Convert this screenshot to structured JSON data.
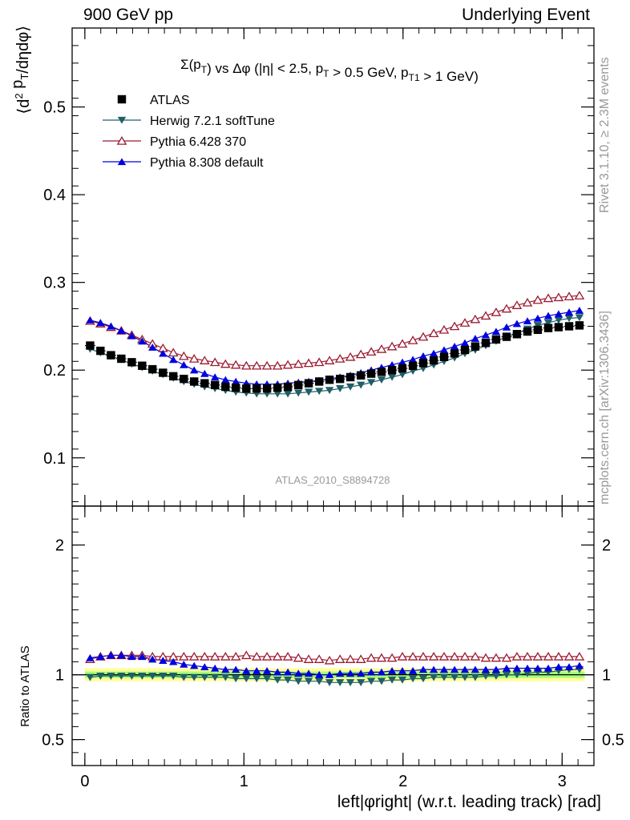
{
  "header": {
    "left": "900 GeV pp",
    "right": "Underlying Event"
  },
  "side": {
    "rivet": "Rivet 3.1.10, ≥ 2.3M events",
    "mcplots": "mcplots.cern.ch [arXiv:1306.3436]"
  },
  "watermark": "ATLAS_2010_S8894728",
  "colors": {
    "atlas": "#000000",
    "herwig": "#1f5f66",
    "pythia6": "#9b1b30",
    "pythia8": "#0000dd",
    "band_inner": "#a8ff7a",
    "band_outer": "#ffff99"
  },
  "chart_data": [
    {
      "type": "scatter",
      "title": "Σ(p_T) vs Δφ (|η| < 2.5, p_T > 0.5 GeV, p_T1 > 1 GeV)",
      "ylabel": "⟨d² p_T/dηdφ⟩",
      "xlim": [
        -0.08,
        3.2
      ],
      "ylim": [
        0.045,
        0.59
      ],
      "yticks": [
        0.1,
        0.2,
        0.3,
        0.4,
        0.5
      ],
      "legend_position": "top-left",
      "x": [
        0.033,
        0.098,
        0.164,
        0.229,
        0.295,
        0.36,
        0.425,
        0.491,
        0.556,
        0.622,
        0.687,
        0.753,
        0.818,
        0.884,
        0.949,
        1.015,
        1.08,
        1.145,
        1.211,
        1.276,
        1.342,
        1.407,
        1.473,
        1.538,
        1.604,
        1.669,
        1.735,
        1.8,
        1.865,
        1.931,
        1.996,
        2.062,
        2.127,
        2.193,
        2.258,
        2.324,
        2.389,
        2.454,
        2.52,
        2.585,
        2.651,
        2.716,
        2.782,
        2.847,
        2.913,
        2.978,
        3.044,
        3.109
      ],
      "series": [
        {
          "name": "ATLAS",
          "marker": "square",
          "color": "#000000",
          "values": [
            0.228,
            0.222,
            0.217,
            0.213,
            0.209,
            0.205,
            0.201,
            0.197,
            0.193,
            0.19,
            0.187,
            0.185,
            0.183,
            0.181,
            0.18,
            0.179,
            0.179,
            0.179,
            0.18,
            0.181,
            0.183,
            0.185,
            0.187,
            0.189,
            0.19,
            0.192,
            0.194,
            0.196,
            0.198,
            0.2,
            0.202,
            0.205,
            0.208,
            0.211,
            0.215,
            0.219,
            0.223,
            0.227,
            0.231,
            0.235,
            0.238,
            0.241,
            0.244,
            0.246,
            0.248,
            0.249,
            0.25,
            0.251
          ]
        },
        {
          "name": "Herwig 7.2.1 softTune",
          "marker": "triangle-down",
          "color": "#1f5f66",
          "values": [
            0.224,
            0.22,
            0.216,
            0.212,
            0.207,
            0.203,
            0.199,
            0.195,
            0.191,
            0.187,
            0.184,
            0.181,
            0.179,
            0.177,
            0.175,
            0.174,
            0.173,
            0.173,
            0.173,
            0.173,
            0.174,
            0.175,
            0.176,
            0.177,
            0.179,
            0.181,
            0.183,
            0.186,
            0.189,
            0.192,
            0.195,
            0.199,
            0.202,
            0.206,
            0.21,
            0.214,
            0.219,
            0.223,
            0.228,
            0.233,
            0.238,
            0.242,
            0.247,
            0.251,
            0.254,
            0.257,
            0.259,
            0.26
          ]
        },
        {
          "name": "Pythia 6.428 370",
          "marker": "triangle-up-open",
          "color": "#9b1b30",
          "values": [
            0.256,
            0.253,
            0.249,
            0.245,
            0.24,
            0.235,
            0.23,
            0.225,
            0.22,
            0.216,
            0.213,
            0.211,
            0.209,
            0.207,
            0.206,
            0.205,
            0.205,
            0.205,
            0.205,
            0.206,
            0.207,
            0.208,
            0.209,
            0.211,
            0.213,
            0.215,
            0.218,
            0.221,
            0.224,
            0.227,
            0.23,
            0.234,
            0.238,
            0.242,
            0.246,
            0.25,
            0.254,
            0.258,
            0.262,
            0.266,
            0.27,
            0.274,
            0.277,
            0.28,
            0.282,
            0.283,
            0.284,
            0.285
          ]
        },
        {
          "name": "Pythia 8.308 default",
          "marker": "triangle-up",
          "color": "#0000dd",
          "values": [
            0.257,
            0.254,
            0.25,
            0.245,
            0.239,
            0.233,
            0.226,
            0.219,
            0.212,
            0.206,
            0.2,
            0.196,
            0.192,
            0.189,
            0.187,
            0.185,
            0.184,
            0.184,
            0.184,
            0.185,
            0.186,
            0.187,
            0.188,
            0.19,
            0.192,
            0.194,
            0.197,
            0.2,
            0.203,
            0.206,
            0.209,
            0.212,
            0.216,
            0.219,
            0.223,
            0.227,
            0.231,
            0.236,
            0.24,
            0.244,
            0.249,
            0.253,
            0.256,
            0.259,
            0.262,
            0.264,
            0.266,
            0.268
          ]
        }
      ]
    },
    {
      "type": "scatter",
      "xlabel": "left|φright| (w.r.t. leading track) [rad]",
      "ylabel": "Ratio to ATLAS",
      "xlim": [
        -0.08,
        3.2
      ],
      "ylim": [
        0.3,
        2.3
      ],
      "xticks": [
        0,
        1,
        2,
        3
      ],
      "yticks": [
        0.5,
        1,
        2
      ],
      "band_inner": [
        0.975,
        1.025
      ],
      "band_outer": [
        0.95,
        1.05
      ],
      "series": [
        {
          "name": "Herwig 7.2.1 softTune",
          "values": [
            0.98,
            0.99,
            0.99,
            0.99,
            0.99,
            0.99,
            0.99,
            0.99,
            0.99,
            0.98,
            0.98,
            0.98,
            0.98,
            0.98,
            0.97,
            0.97,
            0.97,
            0.97,
            0.96,
            0.96,
            0.95,
            0.95,
            0.95,
            0.94,
            0.94,
            0.94,
            0.94,
            0.95,
            0.95,
            0.96,
            0.96,
            0.97,
            0.97,
            0.98,
            0.98,
            0.98,
            0.98,
            0.98,
            0.99,
            0.99,
            1.0,
            1.0,
            1.01,
            1.02,
            1.02,
            1.03,
            1.04,
            1.04
          ]
        },
        {
          "name": "Pythia 6.428 370",
          "values": [
            1.12,
            1.14,
            1.15,
            1.15,
            1.15,
            1.15,
            1.14,
            1.14,
            1.14,
            1.14,
            1.14,
            1.14,
            1.14,
            1.14,
            1.14,
            1.15,
            1.14,
            1.14,
            1.14,
            1.14,
            1.13,
            1.12,
            1.12,
            1.11,
            1.12,
            1.12,
            1.12,
            1.13,
            1.13,
            1.13,
            1.14,
            1.14,
            1.14,
            1.14,
            1.14,
            1.14,
            1.14,
            1.14,
            1.13,
            1.13,
            1.13,
            1.14,
            1.14,
            1.14,
            1.14,
            1.14,
            1.14,
            1.14
          ]
        },
        {
          "name": "Pythia 8.308 default",
          "values": [
            1.13,
            1.14,
            1.15,
            1.15,
            1.14,
            1.14,
            1.12,
            1.11,
            1.1,
            1.08,
            1.07,
            1.06,
            1.05,
            1.04,
            1.04,
            1.03,
            1.03,
            1.03,
            1.02,
            1.02,
            1.01,
            1.01,
            1.0,
            1.0,
            1.01,
            1.01,
            1.01,
            1.02,
            1.02,
            1.03,
            1.03,
            1.03,
            1.04,
            1.04,
            1.04,
            1.04,
            1.04,
            1.04,
            1.04,
            1.04,
            1.05,
            1.05,
            1.05,
            1.05,
            1.05,
            1.06,
            1.06,
            1.07
          ]
        }
      ]
    }
  ]
}
